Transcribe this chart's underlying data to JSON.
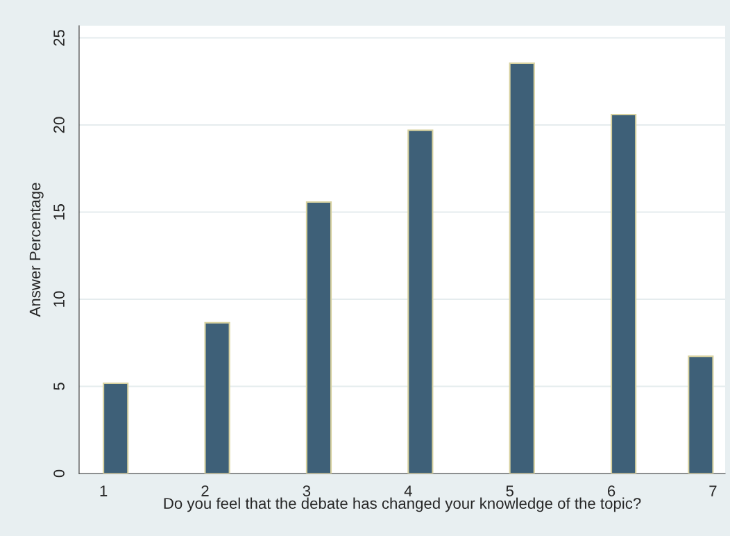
{
  "chart_data": {
    "type": "bar",
    "xlabel": "Do you feel that the debate has changed your knowledge of the topic?",
    "ylabel": "Answer Percentage",
    "x": [
      1.12,
      2.12,
      3.12,
      4.12,
      5.12,
      6.12,
      6.88
    ],
    "values": [
      5.18,
      8.65,
      15.58,
      19.7,
      23.55,
      20.6,
      6.73
    ],
    "color": "#3e6078",
    "xlim": [
      0.76,
      7.12
    ],
    "xticks": [
      1,
      2,
      3,
      4,
      5,
      6,
      7
    ],
    "ylim": [
      0,
      25.7
    ],
    "yticks": [
      0,
      5,
      10,
      15,
      20,
      25
    ],
    "grid": "y",
    "legend": false
  }
}
